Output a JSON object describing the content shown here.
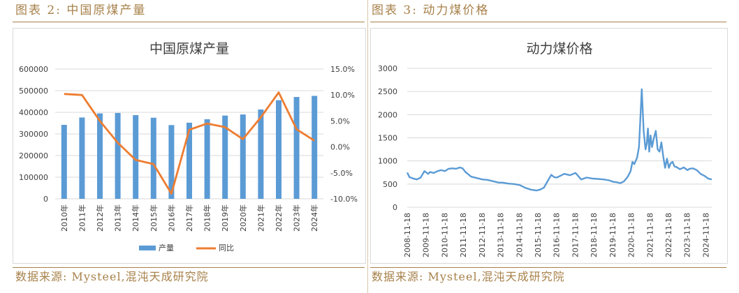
{
  "left": {
    "caption": "图表 2: 中国原煤产量",
    "source": "数据来源: Mysteel,混沌天成研究院"
  },
  "right": {
    "caption": "图表 3: 动力煤价格",
    "source": "数据来源: Mysteel,混沌天成研究院"
  },
  "colors": {
    "bar": "#5b9bd5",
    "line": "#ed7d31",
    "price": "#5b9bd5",
    "grid": "#d9d9d9",
    "caption": "#a7814a"
  },
  "chart_data": [
    {
      "type": "bar",
      "title": "中国原煤产量",
      "categories": [
        "2010年",
        "2011年",
        "2012年",
        "2013年",
        "2014年",
        "2015年",
        "2016年",
        "2017年",
        "2018年",
        "2019年",
        "2020年",
        "2021年",
        "2022年",
        "2023年",
        "2024年"
      ],
      "series": [
        {
          "name": "产量",
          "axis": "left",
          "type": "bar",
          "values": [
            342000,
            376000,
            395000,
            397000,
            387000,
            375000,
            341000,
            352000,
            368000,
            385000,
            390000,
            413000,
            456000,
            471000,
            476000
          ]
        },
        {
          "name": "同比",
          "axis": "right",
          "type": "line",
          "values": [
            10.2,
            10.0,
            5.0,
            0.8,
            -2.5,
            -3.3,
            -9.0,
            3.3,
            4.5,
            3.8,
            1.5,
            5.7,
            10.5,
            3.4,
            1.2
          ]
        }
      ],
      "ylim_left": [
        0,
        600000
      ],
      "yticks_left": [
        "0",
        "100000",
        "200000",
        "300000",
        "400000",
        "500000",
        "600000"
      ],
      "ylim_right": [
        -10,
        15
      ],
      "yticks_right": [
        "-10.0%",
        "-5.0%",
        "0.0%",
        "5.0%",
        "10.0%",
        "15.0%"
      ],
      "legend": [
        "产量",
        "同比"
      ],
      "legend_position": "bottom"
    },
    {
      "type": "line",
      "title": "动力煤价格",
      "x_tick_labels": [
        "2008-11-18",
        "2009-11-18",
        "2010-11-18",
        "2011-11-18",
        "2012-11-18",
        "2013-11-18",
        "2014-11-18",
        "2015-11-18",
        "2016-11-18",
        "2017-11-18",
        "2018-11-18",
        "2019-11-18",
        "2020-11-18",
        "2021-11-18",
        "2022-11-18",
        "2023-11-18",
        "2024-11-18"
      ],
      "x_range": [
        2008.88,
        2025.2
      ],
      "ylim": [
        0,
        3000
      ],
      "yticks": [
        "0",
        "500",
        "1000",
        "1500",
        "2000",
        "2500",
        "3000"
      ],
      "series": [
        {
          "name": "动力煤价格",
          "x": [
            2008.88,
            2009.0,
            2009.2,
            2009.4,
            2009.6,
            2009.8,
            2010.0,
            2010.1,
            2010.3,
            2010.5,
            2010.7,
            2010.9,
            2011.1,
            2011.3,
            2011.5,
            2011.7,
            2011.85,
            2012.0,
            2012.3,
            2012.6,
            2012.9,
            2013.2,
            2013.5,
            2013.8,
            2014.0,
            2014.3,
            2014.6,
            2014.9,
            2015.2,
            2015.5,
            2015.8,
            2016.0,
            2016.2,
            2016.4,
            2016.6,
            2016.75,
            2016.9,
            2017.0,
            2017.3,
            2017.6,
            2017.9,
            2018.2,
            2018.5,
            2018.8,
            2019.1,
            2019.4,
            2019.7,
            2019.9,
            2020.1,
            2020.3,
            2020.5,
            2020.7,
            2020.85,
            2020.95,
            2021.05,
            2021.2,
            2021.3,
            2021.45,
            2021.55,
            2021.65,
            2021.72,
            2021.78,
            2021.85,
            2021.92,
            2022.0,
            2022.1,
            2022.2,
            2022.3,
            2022.4,
            2022.5,
            2022.6,
            2022.7,
            2022.8,
            2022.9,
            2023.0,
            2023.1,
            2023.2,
            2023.3,
            2023.5,
            2023.7,
            2023.9,
            2024.0,
            2024.2,
            2024.4,
            2024.6,
            2024.8,
            2025.0,
            2025.2
          ],
          "values": [
            750,
            650,
            620,
            600,
            640,
            780,
            720,
            760,
            740,
            780,
            800,
            780,
            830,
            840,
            830,
            860,
            840,
            760,
            660,
            630,
            600,
            590,
            560,
            530,
            530,
            510,
            500,
            480,
            420,
            380,
            360,
            380,
            420,
            560,
            700,
            650,
            640,
            660,
            720,
            690,
            740,
            600,
            640,
            620,
            610,
            600,
            580,
            550,
            540,
            520,
            560,
            660,
            780,
            980,
            930,
            1070,
            1300,
            2550,
            1650,
            1250,
            1380,
            1700,
            1200,
            1550,
            1300,
            1500,
            1650,
            1250,
            1200,
            1400,
            1100,
            850,
            1050,
            850,
            950,
            980,
            880,
            870,
            820,
            860,
            800,
            830,
            840,
            800,
            720,
            680,
            620,
            600
          ]
        }
      ]
    }
  ]
}
